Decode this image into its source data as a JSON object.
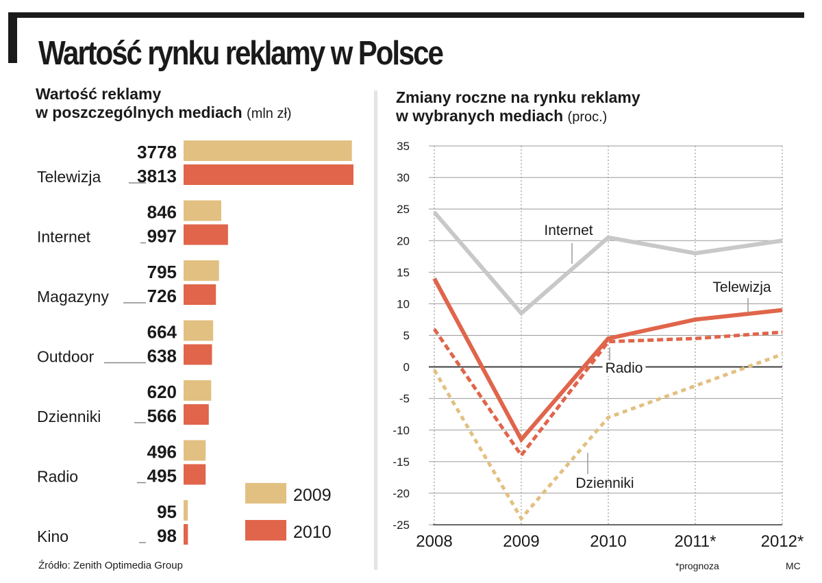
{
  "title": "Wartość rynku reklamy w Polsce",
  "colors": {
    "y2009": "#e2c081",
    "y2010": "#e0654b",
    "internet": "#c8c8c8",
    "dashed_yellow": "#e2c081",
    "grid": "#999999",
    "text": "#1a1a1a"
  },
  "chart_data": [
    {
      "type": "bar",
      "orientation": "horizontal",
      "title_bold": "Wartość reklamy",
      "title_line2_bold": "w poszczególnych mediach",
      "unit": "(mln zł)",
      "categories": [
        "Telewizja",
        "Internet",
        "Magazyny",
        "Outdoor",
        "Dzienniki",
        "Radio",
        "Kino"
      ],
      "series": [
        {
          "name": "2009",
          "values": [
            3778,
            846,
            795,
            664,
            620,
            496,
            95
          ]
        },
        {
          "name": "2010",
          "values": [
            3813,
            997,
            726,
            638,
            566,
            495,
            98
          ]
        }
      ],
      "legend": [
        "2009",
        "2010"
      ],
      "legend_position": "bottom-right"
    },
    {
      "type": "line",
      "title_bold": "Zmiany roczne na rynku reklamy",
      "title_line2_bold": "w wybranych mediach",
      "unit": "(proc.)",
      "x": [
        "2008",
        "2009",
        "2010",
        "2011*",
        "2012*"
      ],
      "ylim": [
        -25,
        35
      ],
      "yticks": [
        "35",
        "30",
        "25",
        "20",
        "15",
        "10",
        "5",
        "0",
        "-5",
        "-10",
        "-15",
        "-20",
        "-25"
      ],
      "grid": true,
      "series": [
        {
          "name": "Internet",
          "values": [
            24.5,
            8.5,
            20.5,
            18,
            20
          ],
          "style": "solid"
        },
        {
          "name": "Telewizja",
          "values": [
            14,
            -11.5,
            4.5,
            7.5,
            9
          ],
          "style": "solid"
        },
        {
          "name": "Radio",
          "values": [
            6,
            -14,
            4,
            4.5,
            5.5
          ],
          "style": "dashed"
        },
        {
          "name": "Dzienniki",
          "values": [
            -0.5,
            -24,
            -8,
            -3,
            2
          ],
          "style": "dashed"
        }
      ],
      "footnote": "*prognoza"
    }
  ],
  "source": "Źródło: Zenith Optimedia Group",
  "author": "MC"
}
